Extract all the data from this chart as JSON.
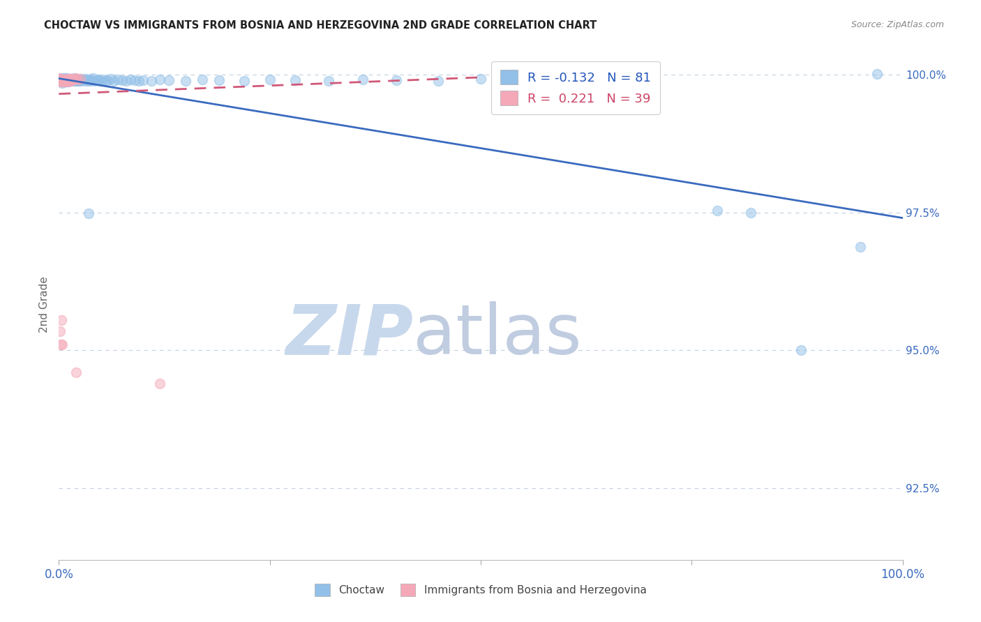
{
  "title": "CHOCTAW VS IMMIGRANTS FROM BOSNIA AND HERZEGOVINA 2ND GRADE CORRELATION CHART",
  "source": "Source: ZipAtlas.com",
  "ylabel": "2nd Grade",
  "ylabel_right_ticks": [
    "92.5%",
    "95.0%",
    "97.5%",
    "100.0%"
  ],
  "ylabel_right_values": [
    0.925,
    0.95,
    0.975,
    1.0
  ],
  "xmin": 0.0,
  "xmax": 1.0,
  "ymin": 0.912,
  "ymax": 1.0045,
  "legend_blue_r": "-0.132",
  "legend_blue_n": "81",
  "legend_pink_r": "0.221",
  "legend_pink_n": "39",
  "blue_color": "#92c0e8",
  "pink_color": "#f4a8b8",
  "blue_line_color": "#3a6abf",
  "pink_line_color": "#d05878",
  "grid_color": "#c0d0e0",
  "watermark_zip_color": "#c8d8ec",
  "watermark_atlas_color": "#c0cce0",
  "blue_scatter": [
    [
      0.002,
      0.999
    ],
    [
      0.003,
      0.9993
    ],
    [
      0.004,
      0.9988
    ],
    [
      0.004,
      0.9985
    ],
    [
      0.005,
      0.9992
    ],
    [
      0.005,
      0.9988
    ],
    [
      0.006,
      0.999
    ],
    [
      0.007,
      0.9993
    ],
    [
      0.007,
      0.9987
    ],
    [
      0.008,
      0.9991
    ],
    [
      0.008,
      0.9988
    ],
    [
      0.009,
      0.9993
    ],
    [
      0.009,
      0.9989
    ],
    [
      0.01,
      0.9992
    ],
    [
      0.01,
      0.9987
    ],
    [
      0.011,
      0.9991
    ],
    [
      0.011,
      0.9987
    ],
    [
      0.012,
      0.9992
    ],
    [
      0.012,
      0.9988
    ],
    [
      0.013,
      0.999
    ],
    [
      0.014,
      0.9989
    ],
    [
      0.015,
      0.9992
    ],
    [
      0.015,
      0.9988
    ],
    [
      0.016,
      0.999
    ],
    [
      0.017,
      0.9991
    ],
    [
      0.018,
      0.9993
    ],
    [
      0.018,
      0.9988
    ],
    [
      0.02,
      0.9992
    ],
    [
      0.02,
      0.9989
    ],
    [
      0.021,
      0.999
    ],
    [
      0.022,
      0.9989
    ],
    [
      0.023,
      0.9991
    ],
    [
      0.024,
      0.9988
    ],
    [
      0.025,
      0.999
    ],
    [
      0.026,
      0.9992
    ],
    [
      0.027,
      0.9989
    ],
    [
      0.028,
      0.9991
    ],
    [
      0.03,
      0.999
    ],
    [
      0.032,
      0.9992
    ],
    [
      0.033,
      0.9989
    ],
    [
      0.035,
      0.9991
    ],
    [
      0.036,
      0.9988
    ],
    [
      0.038,
      0.999
    ],
    [
      0.04,
      0.9993
    ],
    [
      0.042,
      0.9989
    ],
    [
      0.045,
      0.9991
    ],
    [
      0.047,
      0.999
    ],
    [
      0.05,
      0.9989
    ],
    [
      0.052,
      0.9991
    ],
    [
      0.055,
      0.9988
    ],
    [
      0.058,
      0.999
    ],
    [
      0.062,
      0.9992
    ],
    [
      0.065,
      0.9989
    ],
    [
      0.07,
      0.9991
    ],
    [
      0.075,
      0.999
    ],
    [
      0.08,
      0.9989
    ],
    [
      0.085,
      0.9991
    ],
    [
      0.09,
      0.999
    ],
    [
      0.095,
      0.9988
    ],
    [
      0.1,
      0.999
    ],
    [
      0.11,
      0.9989
    ],
    [
      0.12,
      0.9991
    ],
    [
      0.13,
      0.999
    ],
    [
      0.15,
      0.9989
    ],
    [
      0.17,
      0.9991
    ],
    [
      0.19,
      0.999
    ],
    [
      0.22,
      0.9989
    ],
    [
      0.25,
      0.9991
    ],
    [
      0.28,
      0.999
    ],
    [
      0.32,
      0.9989
    ],
    [
      0.36,
      0.9991
    ],
    [
      0.4,
      0.999
    ],
    [
      0.45,
      0.9989
    ],
    [
      0.5,
      0.9992
    ],
    [
      0.55,
      0.999
    ],
    [
      0.035,
      0.9748
    ],
    [
      0.7,
      0.9998
    ],
    [
      0.97,
      1.0001
    ],
    [
      0.78,
      0.9753
    ],
    [
      0.82,
      0.975
    ],
    [
      0.88,
      0.95
    ],
    [
      0.95,
      0.9688
    ]
  ],
  "pink_scatter": [
    [
      0.0005,
      0.9993
    ],
    [
      0.001,
      0.999
    ],
    [
      0.001,
      0.9987
    ],
    [
      0.002,
      0.9991
    ],
    [
      0.002,
      0.9988
    ],
    [
      0.003,
      0.9992
    ],
    [
      0.003,
      0.9989
    ],
    [
      0.004,
      0.9991
    ],
    [
      0.004,
      0.9987
    ],
    [
      0.005,
      0.999
    ],
    [
      0.005,
      0.9987
    ],
    [
      0.006,
      0.9991
    ],
    [
      0.007,
      0.999
    ],
    [
      0.007,
      0.9987
    ],
    [
      0.008,
      0.9991
    ],
    [
      0.008,
      0.9988
    ],
    [
      0.009,
      0.9992
    ],
    [
      0.009,
      0.9988
    ],
    [
      0.01,
      0.9991
    ],
    [
      0.01,
      0.9987
    ],
    [
      0.011,
      0.9991
    ],
    [
      0.012,
      0.999
    ],
    [
      0.012,
      0.9988
    ],
    [
      0.013,
      0.9992
    ],
    [
      0.013,
      0.9989
    ],
    [
      0.014,
      0.9991
    ],
    [
      0.015,
      0.9992
    ],
    [
      0.015,
      0.9988
    ],
    [
      0.016,
      0.9991
    ],
    [
      0.018,
      0.9992
    ],
    [
      0.02,
      0.9993
    ],
    [
      0.022,
      0.9991
    ],
    [
      0.025,
      0.9992
    ],
    [
      0.001,
      0.9535
    ],
    [
      0.002,
      0.951
    ],
    [
      0.003,
      0.9555
    ],
    [
      0.004,
      0.951
    ],
    [
      0.02,
      0.946
    ],
    [
      0.12,
      0.944
    ]
  ],
  "blue_trend_x": [
    0.0,
    1.0
  ],
  "blue_trend_y": [
    0.9993,
    0.974
  ],
  "pink_trend_x": [
    0.0,
    0.5
  ],
  "pink_trend_y": [
    0.9965,
    0.9995
  ]
}
